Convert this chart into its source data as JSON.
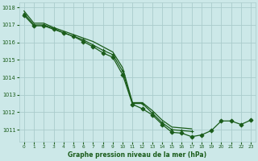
{
  "bg_color": "#cce8e8",
  "grid_color": "#aacccc",
  "line_color": "#1a5c1a",
  "title": "Graphe pression niveau de la mer (hPa)",
  "xlim": [
    -0.5,
    23.5
  ],
  "ylim": [
    1010.3,
    1018.3
  ],
  "yticks": [
    1011,
    1012,
    1013,
    1014,
    1015,
    1016,
    1017,
    1018
  ],
  "xticks": [
    0,
    1,
    2,
    3,
    4,
    5,
    6,
    7,
    8,
    9,
    10,
    11,
    12,
    13,
    14,
    15,
    16,
    17,
    18,
    19,
    20,
    21,
    22,
    23
  ],
  "series": [
    {
      "x": [
        0,
        1,
        2,
        3,
        4,
        5,
        6,
        7,
        8,
        9,
        10,
        11,
        12,
        13,
        14,
        15,
        16,
        17,
        18,
        19,
        20,
        21,
        22,
        23
      ],
      "y": [
        1017.8,
        1017.1,
        1017.1,
        1016.85,
        1016.65,
        1016.45,
        1016.25,
        1016.05,
        1015.75,
        1015.45,
        1014.55,
        1012.55,
        1012.55,
        1012.1,
        1011.55,
        1011.15,
        1011.1,
        1011.05,
        null,
        null,
        null,
        null,
        null,
        null
      ],
      "marker": null,
      "lw": 0.9
    },
    {
      "x": [
        0,
        1,
        2,
        3,
        4,
        5,
        6,
        7,
        8,
        9,
        10,
        11,
        12,
        13,
        14,
        15,
        16,
        17,
        18,
        19,
        20,
        21,
        22,
        23
      ],
      "y": [
        1017.65,
        1017.0,
        1017.0,
        1016.8,
        1016.55,
        1016.35,
        1016.15,
        1015.85,
        1015.55,
        1015.3,
        1014.35,
        1012.5,
        1012.5,
        1011.95,
        1011.4,
        1011.0,
        1010.95,
        1010.9,
        null,
        null,
        null,
        null,
        null,
        null
      ],
      "marker": "+",
      "markersize": 3.5,
      "lw": 0.9
    },
    {
      "x": [
        0,
        1,
        2,
        3,
        4,
        5,
        6,
        7,
        8,
        9,
        10,
        11,
        12,
        13,
        14,
        15,
        16,
        17,
        18,
        19,
        20,
        21,
        22,
        23
      ],
      "y": [
        1017.55,
        1016.95,
        1016.95,
        1016.75,
        1016.55,
        1016.35,
        1016.05,
        1015.75,
        1015.4,
        1015.15,
        1014.15,
        1012.45,
        1012.2,
        1011.85,
        1011.3,
        1010.85,
        1010.8,
        1010.6,
        1010.7,
        1010.95,
        1011.5,
        1011.5,
        1011.3,
        1011.55
      ],
      "marker": "D",
      "markersize": 2.5,
      "lw": 0.9
    }
  ]
}
